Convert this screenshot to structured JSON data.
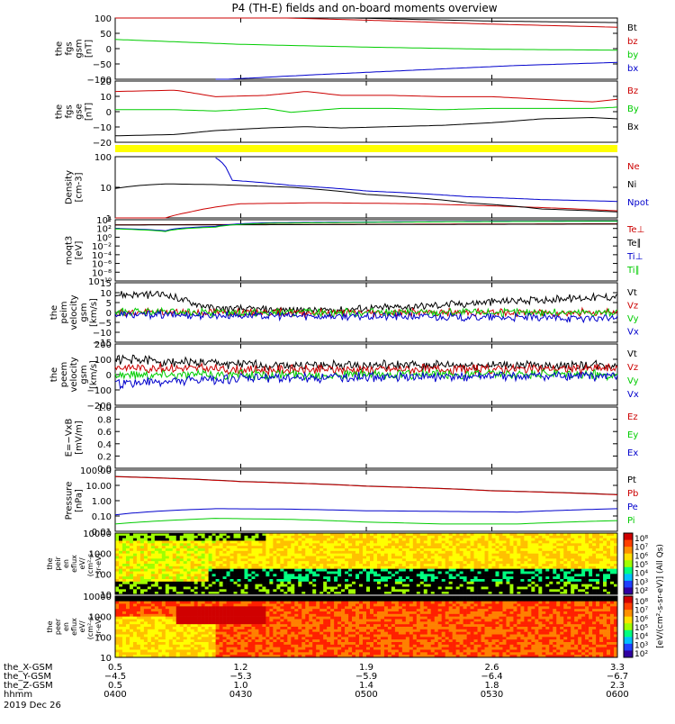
{
  "title": "P4 (TH-E) fields and on-board moments overview",
  "date_label": "2019 Dec 26",
  "colors": {
    "black": "#000000",
    "red": "#cc0000",
    "green": "#00cc00",
    "blue": "#0000cc",
    "yellow": "#ffff00"
  },
  "chart_data": [
    {
      "type": "line",
      "panel": "fgs_gsm_field",
      "ylabel": [
        "the",
        "fgs",
        "gsm",
        "[nT]"
      ],
      "yticks": [
        "100",
        "50",
        "0",
        "−50",
        "−100"
      ],
      "ylim": [
        -100,
        100
      ],
      "series": [
        {
          "name": "Bt",
          "color": "#000000",
          "x": [
            0,
            0.25,
            0.5,
            0.75,
            1
          ],
          "y": [
            112,
            108,
            99,
            90,
            85
          ]
        },
        {
          "name": "bz",
          "color": "#cc0000",
          "x": [
            0,
            0.25,
            0.5,
            0.75,
            1
          ],
          "y": [
            112,
            104,
            93,
            80,
            70
          ]
        },
        {
          "name": "by",
          "color": "#00cc00",
          "x": [
            0,
            0.25,
            0.5,
            0.75,
            1
          ],
          "y": [
            30,
            14,
            5,
            -2,
            -5
          ]
        },
        {
          "name": "bx",
          "color": "#0000cc",
          "x": [
            0.2,
            0.4,
            0.6,
            0.8,
            1
          ],
          "y": [
            -102,
            -85,
            -70,
            -55,
            -45
          ]
        }
      ]
    },
    {
      "type": "line",
      "panel": "fgs_gse_field",
      "ylabel": [
        "the",
        "fgs",
        "gse",
        "[nT]"
      ],
      "yticks": [
        "20",
        "10",
        "0",
        "−10",
        "−20"
      ],
      "ylim": [
        -25,
        22
      ],
      "series": [
        {
          "name": "Bz",
          "color": "#cc0000",
          "x": [
            0,
            0.12,
            0.2,
            0.3,
            0.38,
            0.45,
            0.55,
            0.65,
            0.75,
            0.85,
            0.95,
            1
          ],
          "y": [
            14,
            15,
            10,
            11,
            14,
            11,
            11,
            10,
            10,
            8,
            6,
            8
          ]
        },
        {
          "name": "By",
          "color": "#00cc00",
          "x": [
            0,
            0.12,
            0.2,
            0.3,
            0.35,
            0.45,
            0.55,
            0.65,
            0.75,
            0.85,
            0.95,
            1
          ],
          "y": [
            0,
            0,
            -1,
            1,
            -2,
            1,
            1,
            0,
            1,
            1,
            1,
            2
          ]
        },
        {
          "name": "Bx",
          "color": "#000000",
          "x": [
            0,
            0.12,
            0.2,
            0.3,
            0.38,
            0.45,
            0.55,
            0.65,
            0.75,
            0.85,
            0.95,
            1
          ],
          "y": [
            -20,
            -19,
            -16,
            -14,
            -13,
            -14,
            -13,
            -12,
            -10,
            -7,
            -6,
            -7
          ]
        }
      ]
    },
    {
      "type": "line",
      "panel": "density",
      "ylabel": [
        "Density",
        "[cm-3]"
      ],
      "yticks": [
        "100",
        "10",
        "1"
      ],
      "log": true,
      "ylim": [
        0.5,
        200
      ],
      "series": [
        {
          "name": "Ne",
          "color": "#cc0000",
          "x": [
            0,
            0.1,
            0.15,
            0.25,
            0.4,
            0.6,
            0.8,
            1
          ],
          "y": [
            0.5,
            0.5,
            0.9,
            2.0,
            2.2,
            2.0,
            1.5,
            1.0
          ]
        },
        {
          "name": "Ni",
          "color": "#000000",
          "x": [
            0,
            0.05,
            0.1,
            0.2,
            0.35,
            0.5,
            0.7,
            0.85,
            1
          ],
          "y": [
            9,
            12,
            14,
            13,
            10,
            5,
            2.2,
            1.2,
            0.9
          ]
        },
        {
          "name": "Npot",
          "color": "#0000cc",
          "x": [
            0.2,
            0.23,
            0.35,
            0.5,
            0.7,
            0.85,
            1
          ],
          "y": [
            180,
            20,
            12,
            7,
            4,
            3,
            2.5
          ]
        }
      ]
    },
    {
      "type": "line",
      "panel": "temperature",
      "ylabel": [
        "moqt3",
        "[eV]"
      ],
      "yticks": [
        "10⁴",
        "10²",
        "10⁰",
        "10⁻²",
        "10⁻⁴",
        "10⁻⁶",
        "10⁻⁸",
        "10⁻¹⁰"
      ],
      "log": true,
      "ylim": [
        1e-10,
        10000
      ],
      "series": [
        {
          "name": "Te⊥",
          "color": "#cc0000",
          "x": [
            0,
            0.5,
            1
          ],
          "y": [
            700,
            900,
            1200
          ]
        },
        {
          "name": "Te∥",
          "color": "#000000",
          "x": [
            0,
            0.5,
            1
          ],
          "y": [
            600,
            800,
            1000
          ]
        },
        {
          "name": "Ti⊥",
          "color": "#0000cc",
          "x": [
            0,
            0.1,
            0.2,
            0.3,
            0.5,
            0.7,
            1
          ],
          "y": [
            100,
            30,
            300,
            2000,
            3000,
            4000,
            5000
          ]
        },
        {
          "name": "Ti∥",
          "color": "#00cc00",
          "x": [
            0,
            0.1,
            0.2,
            0.3,
            0.5,
            0.7,
            1
          ],
          "y": [
            80,
            20,
            200,
            1500,
            2500,
            3500,
            4500
          ]
        }
      ]
    },
    {
      "type": "line",
      "panel": "peim_velocity",
      "ylabel": [
        "the",
        "peim",
        "velocity",
        "gsm",
        "[km/s]"
      ],
      "yticks": [
        "15",
        "10",
        "5",
        "0",
        "−5",
        "−10",
        "−15"
      ],
      "ylim": [
        -15,
        15
      ],
      "series": [
        {
          "name": "Vt",
          "color": "#000000",
          "x": [
            0,
            0.1,
            0.15,
            0.2,
            0.4,
            0.6,
            0.8,
            1
          ],
          "y": [
            9,
            9,
            5,
            2,
            1,
            3,
            6,
            8
          ]
        },
        {
          "name": "Vz",
          "color": "#cc0000",
          "x": [
            0,
            0.5,
            1
          ],
          "y": [
            0,
            0,
            0
          ]
        },
        {
          "name": "Vy",
          "color": "#00cc00",
          "x": [
            0,
            0.5,
            1
          ],
          "y": [
            0,
            0,
            0
          ]
        },
        {
          "name": "Vx",
          "color": "#0000cc",
          "x": [
            0,
            0.5,
            1
          ],
          "y": [
            -1,
            -2,
            -3
          ]
        }
      ]
    },
    {
      "type": "line",
      "panel": "peem_velocity",
      "ylabel": [
        "the",
        "peem",
        "velocity",
        "gsm",
        "[km/s]"
      ],
      "yticks": [
        "200",
        "100",
        "0",
        "−100",
        "−200"
      ],
      "ylim": [
        -200,
        200
      ],
      "series": [
        {
          "name": "Vt",
          "color": "#000000",
          "x": [
            0,
            0.3,
            1
          ],
          "y": [
            100,
            60,
            60
          ]
        },
        {
          "name": "Vz",
          "color": "#cc0000",
          "x": [
            0,
            0.3,
            1
          ],
          "y": [
            50,
            30,
            40
          ]
        },
        {
          "name": "Vy",
          "color": "#00cc00",
          "x": [
            0,
            0.3,
            1
          ],
          "y": [
            0,
            0,
            0
          ]
        },
        {
          "name": "Vx",
          "color": "#0000cc",
          "x": [
            0,
            0.3,
            1
          ],
          "y": [
            -60,
            -20,
            -10
          ]
        }
      ]
    },
    {
      "type": "line",
      "panel": "e_field",
      "ylabel": [
        "E=−VxB",
        "[mV/m]"
      ],
      "yticks": [
        "1.0",
        "0.8",
        "0.6",
        "0.4",
        "0.2",
        "0.0"
      ],
      "ylim": [
        0,
        1
      ],
      "series": [
        {
          "name": "Ez",
          "color": "#cc0000",
          "x": [],
          "y": []
        },
        {
          "name": "Ey",
          "color": "#00cc00",
          "x": [],
          "y": []
        },
        {
          "name": "Ex",
          "color": "#0000cc",
          "x": [],
          "y": []
        }
      ]
    },
    {
      "type": "line",
      "panel": "pressure",
      "ylabel": [
        "Pressure",
        "[nPa]"
      ],
      "yticks": [
        "100.00",
        "10.00",
        "1.00",
        "0.10",
        "0.01"
      ],
      "log": true,
      "ylim": [
        0.01,
        100
      ],
      "series": [
        {
          "name": "Pt",
          "color": "#000000",
          "x": [
            0,
            0.25,
            0.5,
            0.75,
            1
          ],
          "y": [
            38,
            18,
            9,
            4.5,
            2.5
          ]
        },
        {
          "name": "Pb",
          "color": "#cc0000",
          "x": [
            0,
            0.25,
            0.5,
            0.75,
            1
          ],
          "y": [
            37,
            17.5,
            8.8,
            4.4,
            2.4
          ]
        },
        {
          "name": "Pe",
          "color": "#0000cc",
          "x": [
            0,
            0.1,
            0.2,
            0.35,
            0.5,
            0.65,
            0.8,
            1
          ],
          "y": [
            0.12,
            0.22,
            0.3,
            0.28,
            0.22,
            0.2,
            0.18,
            0.3
          ]
        },
        {
          "name": "Pi",
          "color": "#00cc00",
          "x": [
            0,
            0.1,
            0.2,
            0.35,
            0.5,
            0.65,
            0.8,
            1
          ],
          "y": [
            0.03,
            0.05,
            0.07,
            0.06,
            0.04,
            0.03,
            0.03,
            0.05
          ]
        }
      ]
    },
    {
      "type": "heatmap",
      "panel": "peir_spectrogram",
      "ylabel": [
        "the",
        "peir",
        "en",
        "eflux",
        "eV/",
        "(cm²-s-",
        "sr-eV)"
      ],
      "yticks": [
        "10000",
        "1000",
        "100",
        "10"
      ]
    },
    {
      "type": "heatmap",
      "panel": "peer_spectrogram",
      "ylabel": [
        "the",
        "peer",
        "en",
        "eflux",
        "eV/",
        "(cm²-s-",
        "sr-eV)"
      ],
      "yticks": [
        "10000",
        "1000",
        "100",
        "10"
      ]
    }
  ],
  "colorbar": {
    "ticks": [
      "10⁸",
      "10⁷",
      "10⁶",
      "10⁵",
      "10⁴",
      "10³",
      "10²"
    ],
    "label": "[eV/(cm²-s-sr-eV)] (All Qs)"
  },
  "xaxis": {
    "row_labels": [
      "the_X-GSM",
      "the_Y-GSM",
      "the_Z-GSM",
      "hhmm",
      "2019 Dec 26"
    ],
    "columns": [
      {
        "x_gsm": "0.5",
        "y_gsm": "−4.5",
        "z_gsm": "0.5",
        "hhmm": "0400"
      },
      {
        "x_gsm": "1.2",
        "y_gsm": "−5.3",
        "z_gsm": "1.0",
        "hhmm": "0430"
      },
      {
        "x_gsm": "1.9",
        "y_gsm": "−5.9",
        "z_gsm": "1.4",
        "hhmm": "0500"
      },
      {
        "x_gsm": "2.6",
        "y_gsm": "−6.4",
        "z_gsm": "1.8",
        "hhmm": "0530"
      },
      {
        "x_gsm": "3.3",
        "y_gsm": "−6.7",
        "z_gsm": "2.3",
        "hhmm": "0600"
      }
    ]
  }
}
